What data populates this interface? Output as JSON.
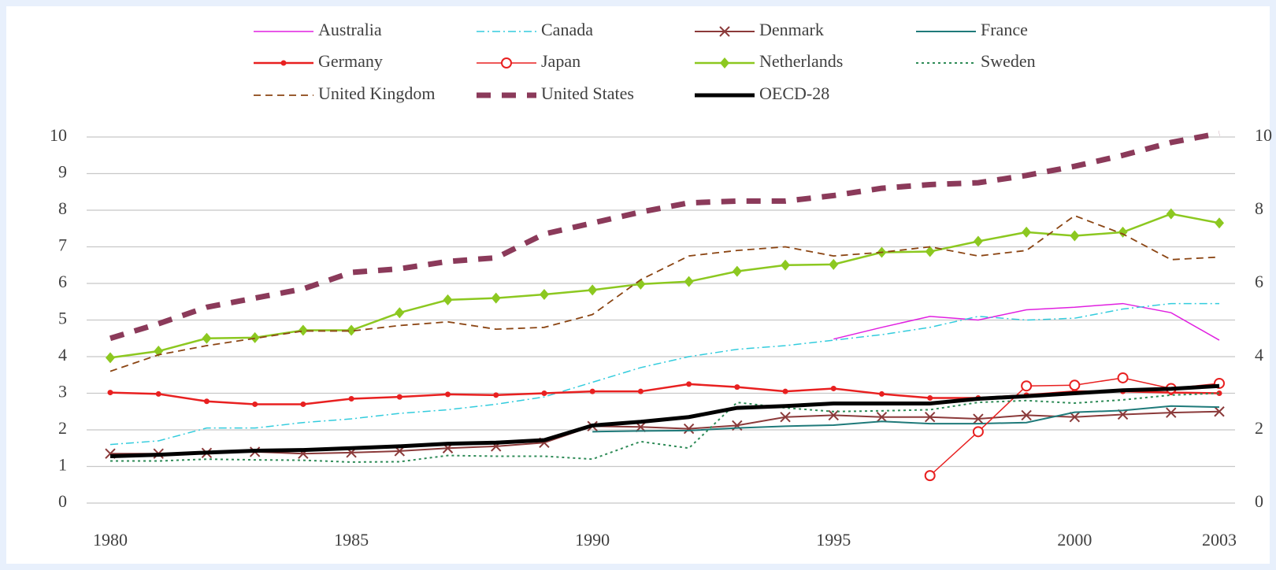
{
  "chart_data": {
    "type": "line",
    "x": [
      1980,
      1981,
      1982,
      1983,
      1984,
      1985,
      1986,
      1987,
      1988,
      1989,
      1990,
      1991,
      1992,
      1993,
      1994,
      1995,
      1996,
      1997,
      1998,
      1999,
      2000,
      2001,
      2002,
      2003
    ],
    "xlim": [
      1980,
      2003
    ],
    "xticks": [
      1980,
      1985,
      1990,
      1995,
      2000,
      2003
    ],
    "ylim": [
      0,
      10
    ],
    "yticks": [
      0,
      1,
      2,
      3,
      4,
      5,
      6,
      7,
      8,
      9,
      10
    ],
    "y2lim": [
      0,
      10
    ],
    "y2ticks": [
      0,
      2,
      4,
      6,
      8,
      10
    ],
    "grid": true,
    "legend": "top",
    "series": [
      {
        "name": "Australia",
        "color": "#e020e0",
        "line_style": "solid",
        "line_width": 1.5,
        "marker": "none",
        "values": [
          null,
          null,
          null,
          null,
          null,
          null,
          null,
          null,
          null,
          null,
          null,
          null,
          null,
          null,
          null,
          4.48,
          4.8,
          5.1,
          5.0,
          5.28,
          5.35,
          5.45,
          5.2,
          4.45
        ]
      },
      {
        "name": "Canada",
        "color": "#33ccdd",
        "line_style": "dashdot",
        "line_width": 1.5,
        "marker": "none",
        "values": [
          1.6,
          1.7,
          2.05,
          2.05,
          2.2,
          2.3,
          2.45,
          2.55,
          2.7,
          2.9,
          3.3,
          3.7,
          4.0,
          4.2,
          4.3,
          4.45,
          4.6,
          4.8,
          5.1,
          5.0,
          5.05,
          5.3,
          5.45,
          5.45
        ]
      },
      {
        "name": "Denmark",
        "color": "#8b3a3a",
        "line_style": "solid",
        "line_width": 2,
        "marker": "x",
        "values": [
          1.35,
          1.35,
          1.37,
          1.4,
          1.35,
          1.38,
          1.42,
          1.5,
          1.55,
          1.65,
          2.1,
          2.08,
          2.03,
          2.12,
          2.35,
          2.4,
          2.35,
          2.35,
          2.3,
          2.4,
          2.35,
          2.42,
          2.47,
          2.5
        ]
      },
      {
        "name": "France",
        "color": "#1f7a7a",
        "line_style": "solid",
        "line_width": 2,
        "marker": "none",
        "values": [
          null,
          null,
          null,
          null,
          null,
          null,
          null,
          null,
          null,
          null,
          1.95,
          1.97,
          1.98,
          2.05,
          2.1,
          2.13,
          2.23,
          2.17,
          2.17,
          2.2,
          2.48,
          2.53,
          2.65,
          2.62
        ]
      },
      {
        "name": "Germany",
        "color": "#e82020",
        "line_style": "solid",
        "line_width": 2.5,
        "marker": "dot",
        "values": [
          3.02,
          2.98,
          2.78,
          2.7,
          2.7,
          2.85,
          2.9,
          2.97,
          2.95,
          3.0,
          3.05,
          3.05,
          3.25,
          3.17,
          3.05,
          3.13,
          2.98,
          2.87,
          2.87,
          2.95,
          3.05,
          3.05,
          3.02,
          3.0
        ]
      },
      {
        "name": "Japan",
        "color": "#e82020",
        "line_style": "solid",
        "line_width": 1.5,
        "marker": "circle",
        "values": [
          null,
          null,
          null,
          null,
          null,
          null,
          null,
          null,
          null,
          null,
          null,
          null,
          null,
          null,
          null,
          null,
          null,
          0.75,
          1.95,
          3.2,
          3.22,
          3.42,
          3.13,
          3.27
        ]
      },
      {
        "name": "Netherlands",
        "color": "#8cc820",
        "line_style": "solid",
        "line_width": 2.5,
        "marker": "diamond",
        "values": [
          3.97,
          4.15,
          4.5,
          4.52,
          4.72,
          4.72,
          5.2,
          5.55,
          5.6,
          5.7,
          5.82,
          5.98,
          6.05,
          6.33,
          6.5,
          6.52,
          6.85,
          6.87,
          7.15,
          7.4,
          7.3,
          7.4,
          7.9,
          7.65
        ]
      },
      {
        "name": "Sweden",
        "color": "#2e8b57",
        "line_style": "dotted",
        "line_width": 2,
        "marker": "none",
        "values": [
          1.15,
          1.15,
          1.2,
          1.18,
          1.17,
          1.12,
          1.13,
          1.3,
          1.28,
          1.28,
          1.2,
          1.68,
          1.5,
          2.75,
          2.6,
          2.5,
          2.52,
          2.55,
          2.75,
          2.8,
          2.73,
          2.82,
          2.95,
          3.0
        ]
      },
      {
        "name": "United Kingdom",
        "color": "#8b4513",
        "line_style": "dashed",
        "line_width": 1.8,
        "marker": "none",
        "values": [
          3.6,
          4.05,
          4.3,
          4.5,
          4.7,
          4.7,
          4.85,
          4.95,
          4.75,
          4.8,
          5.15,
          6.1,
          6.75,
          6.9,
          7.0,
          6.75,
          6.85,
          7.0,
          6.75,
          6.9,
          7.85,
          7.35,
          6.65,
          6.72
        ]
      },
      {
        "name": "United States",
        "color": "#8b3a5a",
        "line_style": "bigdash",
        "line_width": 7,
        "marker": "none",
        "values": [
          4.5,
          4.9,
          5.35,
          5.6,
          5.85,
          6.3,
          6.4,
          6.6,
          6.7,
          7.35,
          7.65,
          7.95,
          8.2,
          8.25,
          8.25,
          8.4,
          8.6,
          8.7,
          8.75,
          8.95,
          9.2,
          9.5,
          9.85,
          10.1
        ]
      },
      {
        "name": "OECD-28",
        "color": "#000000",
        "line_style": "solid",
        "line_width": 5,
        "marker": "none",
        "values": [
          1.28,
          1.32,
          1.38,
          1.43,
          1.45,
          1.5,
          1.55,
          1.62,
          1.65,
          1.72,
          2.12,
          2.22,
          2.35,
          2.6,
          2.65,
          2.72,
          2.72,
          2.72,
          2.85,
          2.92,
          3.0,
          3.08,
          3.12,
          3.2
        ]
      }
    ]
  }
}
